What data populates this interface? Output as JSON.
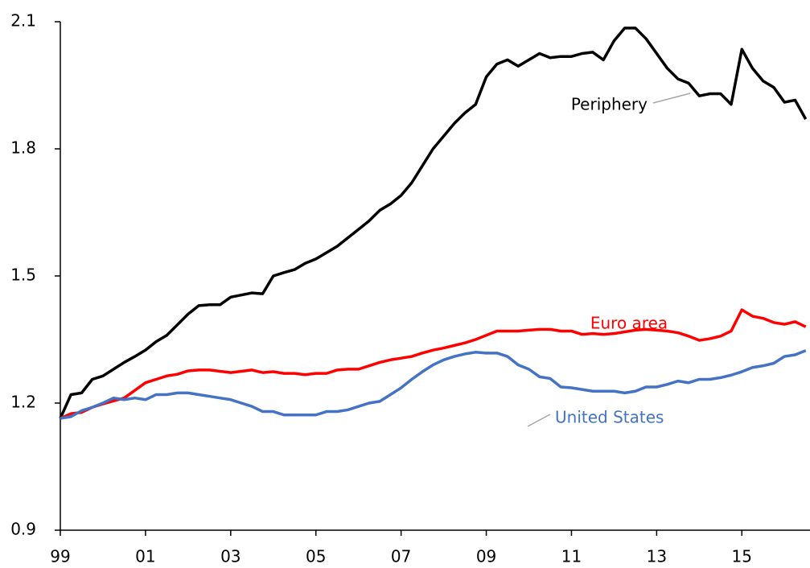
{
  "chart_data": {
    "type": "line",
    "x": [
      1999,
      1999.25,
      1999.5,
      1999.75,
      2000,
      2000.25,
      2000.5,
      2000.75,
      2001,
      2001.25,
      2001.5,
      2001.75,
      2002,
      2002.25,
      2002.5,
      2002.75,
      2003,
      2003.25,
      2003.5,
      2003.75,
      2004,
      2004.25,
      2004.5,
      2004.75,
      2005,
      2005.25,
      2005.5,
      2005.75,
      2006,
      2006.25,
      2006.5,
      2006.75,
      2007,
      2007.25,
      2007.5,
      2007.75,
      2008,
      2008.25,
      2008.5,
      2008.75,
      2009,
      2009.25,
      2009.5,
      2009.75,
      2010,
      2010.25,
      2010.5,
      2010.75,
      2011,
      2011.25,
      2011.5,
      2011.75,
      2012,
      2012.25,
      2012.5,
      2012.75,
      2013,
      2013.25,
      2013.5,
      2013.75,
      2014,
      2014.25,
      2014.5,
      2014.75,
      2015,
      2015.25,
      2015.5,
      2015.75,
      2016,
      2016.25,
      2016.5
    ],
    "series": [
      {
        "name": "Periphery",
        "color": "#000000",
        "values": [
          1.164,
          1.22,
          1.224,
          1.256,
          1.264,
          1.28,
          1.296,
          1.31,
          1.325,
          1.345,
          1.36,
          1.385,
          1.41,
          1.43,
          1.432,
          1.432,
          1.45,
          1.455,
          1.46,
          1.458,
          1.5,
          1.508,
          1.515,
          1.53,
          1.54,
          1.555,
          1.57,
          1.59,
          1.61,
          1.63,
          1.655,
          1.67,
          1.69,
          1.72,
          1.76,
          1.8,
          1.83,
          1.86,
          1.885,
          1.905,
          1.97,
          2.0,
          2.01,
          1.995,
          2.01,
          2.025,
          2.015,
          2.018,
          2.018,
          2.025,
          2.028,
          2.01,
          2.055,
          2.085,
          2.085,
          2.06,
          2.025,
          1.99,
          1.965,
          1.955,
          1.925,
          1.93,
          1.93,
          1.905,
          2.035,
          1.99,
          1.96,
          1.945,
          1.91,
          1.915,
          1.87
        ]
      },
      {
        "name": "Euro area",
        "color": "#ff0000",
        "values": [
          1.164,
          1.175,
          1.178,
          1.19,
          1.198,
          1.205,
          1.212,
          1.23,
          1.248,
          1.256,
          1.264,
          1.268,
          1.276,
          1.278,
          1.278,
          1.275,
          1.272,
          1.275,
          1.278,
          1.272,
          1.274,
          1.27,
          1.27,
          1.267,
          1.27,
          1.27,
          1.278,
          1.28,
          1.28,
          1.288,
          1.296,
          1.302,
          1.306,
          1.31,
          1.318,
          1.325,
          1.33,
          1.336,
          1.342,
          1.35,
          1.36,
          1.37,
          1.37,
          1.37,
          1.372,
          1.374,
          1.374,
          1.37,
          1.37,
          1.362,
          1.364,
          1.362,
          1.364,
          1.368,
          1.372,
          1.374,
          1.372,
          1.37,
          1.366,
          1.358,
          1.348,
          1.352,
          1.358,
          1.37,
          1.42,
          1.405,
          1.4,
          1.39,
          1.386,
          1.392,
          1.38
        ]
      },
      {
        "name": "United States",
        "color": "#4472c4",
        "values": [
          1.164,
          1.168,
          1.182,
          1.19,
          1.2,
          1.212,
          1.208,
          1.212,
          1.208,
          1.22,
          1.22,
          1.224,
          1.224,
          1.22,
          1.216,
          1.212,
          1.208,
          1.2,
          1.192,
          1.18,
          1.18,
          1.172,
          1.172,
          1.172,
          1.172,
          1.18,
          1.18,
          1.184,
          1.192,
          1.2,
          1.204,
          1.22,
          1.236,
          1.256,
          1.274,
          1.29,
          1.302,
          1.31,
          1.316,
          1.32,
          1.318,
          1.318,
          1.31,
          1.29,
          1.28,
          1.262,
          1.258,
          1.238,
          1.236,
          1.232,
          1.228,
          1.228,
          1.228,
          1.224,
          1.228,
          1.238,
          1.238,
          1.244,
          1.252,
          1.248,
          1.256,
          1.256,
          1.26,
          1.266,
          1.274,
          1.284,
          1.288,
          1.294,
          1.31,
          1.314,
          1.324
        ]
      }
    ],
    "xlim": [
      1999,
      2016.6
    ],
    "xticks": [
      {
        "value": 1999,
        "label": "99"
      },
      {
        "value": 2001,
        "label": "01"
      },
      {
        "value": 2003,
        "label": "03"
      },
      {
        "value": 2005,
        "label": "05"
      },
      {
        "value": 2007,
        "label": "07"
      },
      {
        "value": 2009,
        "label": "09"
      },
      {
        "value": 2011,
        "label": "11"
      },
      {
        "value": 2013,
        "label": "13"
      },
      {
        "value": 2015,
        "label": "15"
      }
    ],
    "ylim": [
      0.9,
      2.1
    ],
    "yticks": [
      0.9,
      1.2,
      1.5,
      1.8,
      2.1
    ],
    "grid": false
  }
}
